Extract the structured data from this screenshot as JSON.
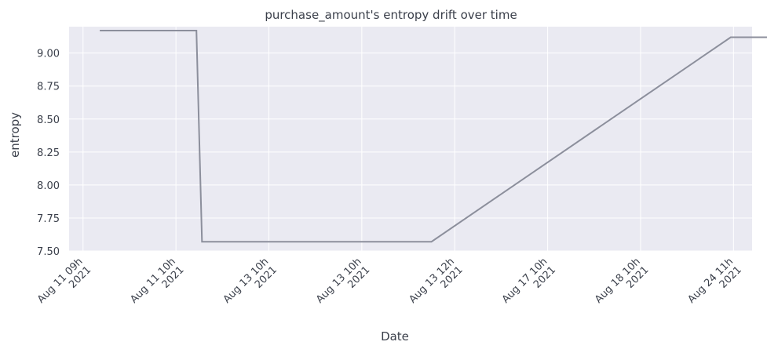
{
  "chart_data": {
    "type": "line",
    "title": "purchase_amount's entropy drift over time",
    "xlabel": "Date",
    "ylabel": "entropy",
    "ylim": [
      7.5,
      9.2
    ],
    "y_ticks": [
      "7.50",
      "7.75",
      "8.00",
      "8.25",
      "8.50",
      "8.75",
      "9.00"
    ],
    "y_tick_values": [
      7.5,
      7.75,
      8.0,
      8.25,
      8.5,
      8.75,
      9.0
    ],
    "x_ticks": [
      [
        "Aug 11 09h",
        "2021"
      ],
      [
        "Aug 11 10h",
        "2021"
      ],
      [
        "Aug 13 10h",
        "2021"
      ],
      [
        "Aug 13 10h",
        "2021"
      ],
      [
        "Aug 13 12h",
        "2021"
      ],
      [
        "Aug 17 10h",
        "2021"
      ],
      [
        "Aug 18 10h",
        "2021"
      ],
      [
        "Aug 24 11h",
        "2021"
      ]
    ],
    "x_tick_index": [
      0,
      1,
      2,
      3,
      4,
      5,
      6,
      7
    ],
    "xlim": [
      -0.15,
      7.2
    ],
    "grid": true,
    "series": [
      {
        "x": [
          0.18,
          1.22,
          1.28,
          3.75,
          6.97,
          7.47
        ],
        "y": [
          9.17,
          9.17,
          7.57,
          7.57,
          9.12,
          9.12
        ]
      }
    ],
    "colors": {
      "plot_bg": "#eaeaf2",
      "grid": "#ffffff",
      "line": "#8c8f9c",
      "text": "#3a3f4a"
    }
  }
}
